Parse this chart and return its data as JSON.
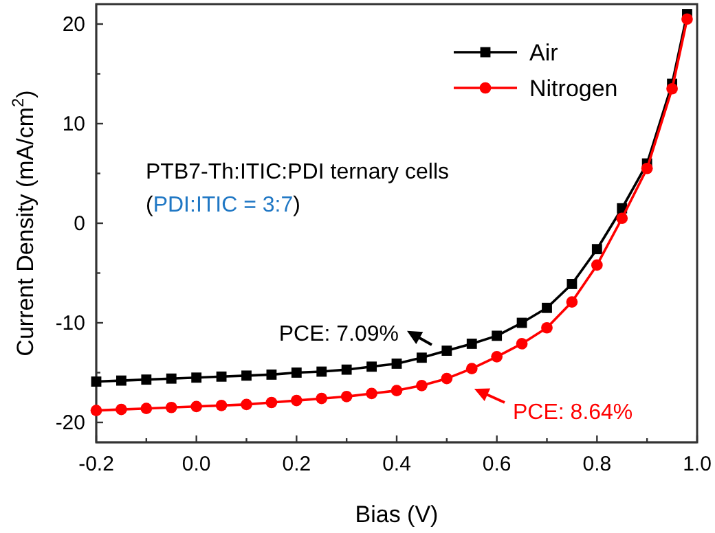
{
  "chart_data": {
    "type": "line",
    "xlabel": "Bias (V)",
    "ylabel": "Current Density (mA/cm$^{2}$)",
    "x": [
      -0.2,
      -0.15,
      -0.1,
      -0.05,
      0,
      0.05,
      0.1,
      0.15,
      0.2,
      0.25,
      0.3,
      0.35,
      0.4,
      0.45,
      0.5,
      0.55,
      0.6,
      0.65,
      0.7,
      0.75,
      0.8,
      0.85,
      0.9,
      0.95,
      0.98
    ],
    "series": [
      {
        "name": "Air",
        "color": "#000000",
        "marker": "square",
        "values": [
          -15.9,
          -15.8,
          -15.7,
          -15.6,
          -15.5,
          -15.4,
          -15.3,
          -15.2,
          -15.0,
          -14.9,
          -14.7,
          -14.4,
          -14.1,
          -13.5,
          -12.8,
          -12.1,
          -11.3,
          -10.0,
          -8.5,
          -6.1,
          -2.6,
          1.5,
          6.0,
          14.0,
          21.0
        ]
      },
      {
        "name": "Nitrogen",
        "color": "#ff0000",
        "marker": "circle",
        "values": [
          -18.8,
          -18.7,
          -18.6,
          -18.5,
          -18.4,
          -18.3,
          -18.2,
          -18.0,
          -17.8,
          -17.6,
          -17.4,
          -17.1,
          -16.8,
          -16.3,
          -15.6,
          -14.6,
          -13.4,
          -12.1,
          -10.5,
          -7.9,
          -4.2,
          0.5,
          5.5,
          13.5,
          20.5
        ]
      }
    ],
    "xlim": [
      -0.2,
      1.0
    ],
    "xticks": [
      -0.2,
      {
        "value": -0.1,
        "label": null
      },
      {
        "value": 0,
        "label": "0.0"
      },
      {
        "value": 0.1,
        "label": null
      },
      0.2,
      {
        "value": 0.3,
        "label": null
      },
      0.4,
      {
        "value": 0.5,
        "label": null
      },
      0.6,
      {
        "value": 0.7,
        "label": null
      },
      0.8,
      {
        "value": 0.9,
        "label": null
      },
      {
        "value": 1,
        "label": "1.0"
      }
    ],
    "ylim": [
      -22,
      22
    ],
    "yticks": [
      -20,
      {
        "value": -15,
        "label": null
      },
      -10,
      {
        "value": -5,
        "label": null
      },
      0,
      {
        "value": 5,
        "label": null
      },
      10,
      {
        "value": 15,
        "label": null
      },
      20
    ],
    "grid": false,
    "legend": "top right",
    "line_style": "solid",
    "annotations": [
      "PTB7-Th:ITIC:PDI ternary cells",
      "(PDI:ITIC = 3:7)",
      "PCE: 7.09%",
      "PCE: 8.64%"
    ]
  }
}
